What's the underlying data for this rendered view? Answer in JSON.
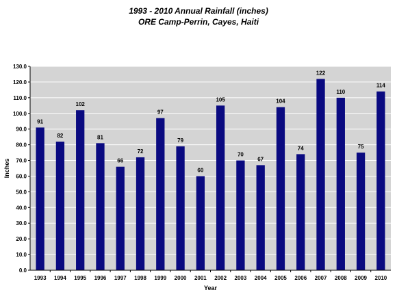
{
  "chart_data": {
    "type": "bar",
    "title": "1993 - 2010 Annual Rainfall (inches)",
    "subtitle": "ORE Camp-Perrin, Cayes, Haiti",
    "xlabel": "Year",
    "ylabel": "Inches",
    "ylim": [
      0,
      130
    ],
    "ytick_step": 10,
    "ytick_labels": [
      "0.0",
      "10.0",
      "20.0",
      "30.0",
      "40.0",
      "50.0",
      "60.0",
      "70.0",
      "80.0",
      "90.0",
      "100.0",
      "110.0",
      "120.0",
      "130.0"
    ],
    "grid": true,
    "categories": [
      "1993",
      "1994",
      "1995",
      "1996",
      "1997",
      "1998",
      "1999",
      "2000",
      "2001",
      "2002",
      "2003",
      "2004",
      "2005",
      "2006",
      "2007",
      "2008",
      "2009",
      "2010"
    ],
    "values": [
      91,
      82,
      102,
      81,
      66,
      72,
      97,
      79,
      60,
      105,
      70,
      67,
      104,
      74,
      122,
      110,
      75,
      114
    ],
    "data_labels": [
      "91",
      "82",
      "102",
      "81",
      "66",
      "72",
      "97",
      "79",
      "60",
      "105",
      "70",
      "67",
      "104",
      "74",
      "122",
      "110",
      "75",
      "114"
    ],
    "bar_color": "#0a0a80",
    "plot_bg": "#d4d4d4",
    "grid_color": "#ffffff"
  }
}
